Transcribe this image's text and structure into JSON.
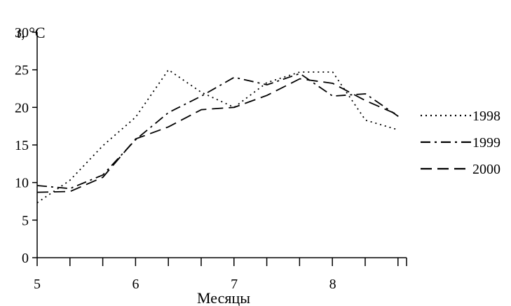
{
  "chart_data": {
    "type": "line",
    "title": "",
    "ylabel_var": "t",
    "ylabel_unit": ", °C",
    "xlabel": "Месяцы",
    "ylim": [
      0,
      30
    ],
    "xlim": [
      5,
      8.75
    ],
    "yticks": [
      0,
      5,
      10,
      15,
      20,
      25,
      30
    ],
    "xticks": [
      5,
      6,
      7,
      8
    ],
    "x_minor_step": 0.333,
    "grid": false,
    "legend_position": "right",
    "series": [
      {
        "name": "1998",
        "dash": "dotted",
        "x": [
          5.0,
          5.333,
          5.667,
          6.0,
          6.333,
          6.667,
          7.0,
          7.333,
          7.667,
          8.0,
          8.333,
          8.667
        ],
        "y": [
          7.3,
          10.3,
          14.9,
          18.7,
          25.0,
          22.0,
          20.0,
          23.3,
          24.7,
          24.7,
          18.3,
          17.0
        ]
      },
      {
        "name": "1999",
        "dash": "dashdot",
        "x": [
          5.0,
          5.333,
          5.667,
          6.0,
          6.333,
          6.667,
          7.0,
          7.333,
          7.667,
          8.0,
          8.333,
          8.667
        ],
        "y": [
          9.6,
          9.2,
          11.0,
          15.7,
          19.3,
          21.5,
          24.0,
          23.0,
          24.5,
          21.5,
          21.8,
          18.8
        ]
      },
      {
        "name": "2000",
        "dash": "dashed",
        "x": [
          5.0,
          5.333,
          5.667,
          6.0,
          6.333,
          6.667,
          7.0,
          7.333,
          7.667,
          8.0,
          8.333,
          8.667
        ],
        "y": [
          8.7,
          8.8,
          10.7,
          15.8,
          17.4,
          19.7,
          20.0,
          21.6,
          23.8,
          23.2,
          20.9,
          19.0
        ]
      }
    ]
  }
}
